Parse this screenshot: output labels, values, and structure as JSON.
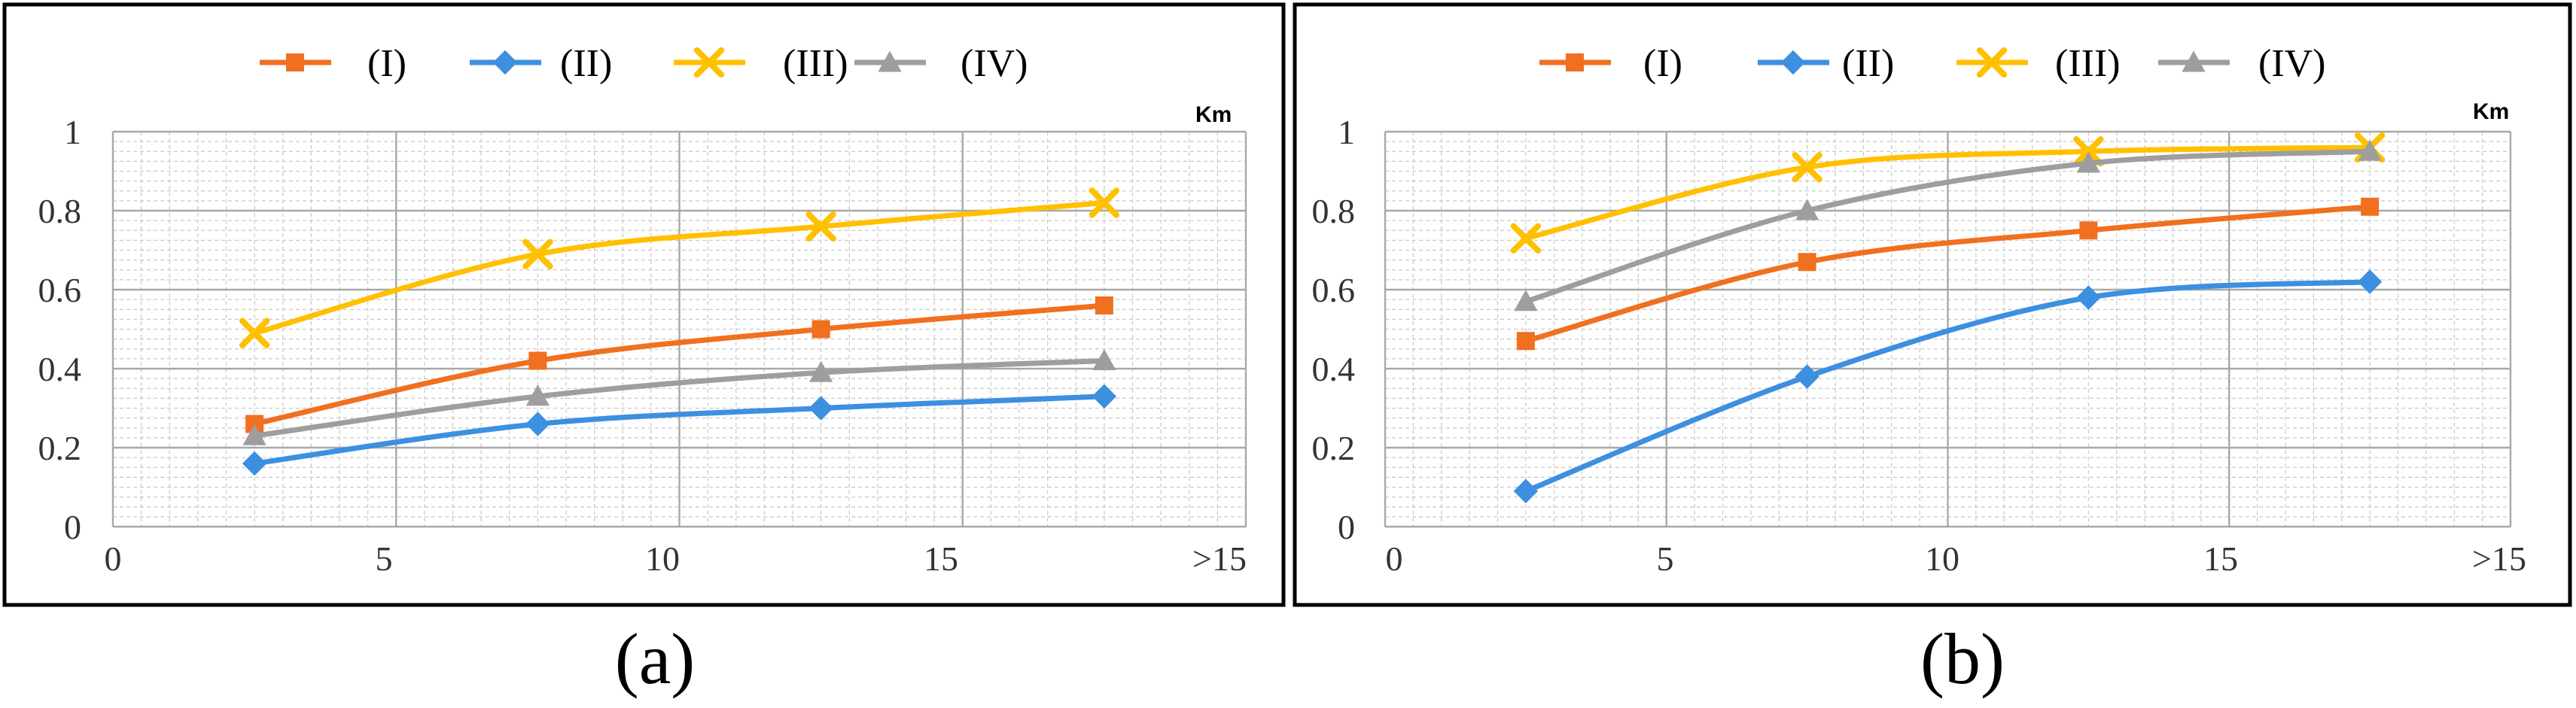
{
  "chart_data": [
    {
      "type": "line",
      "caption": "(a)",
      "unit_label": "Km",
      "x_tick_labels": [
        "0",
        "5",
        "10",
        "15",
        ">15"
      ],
      "y_tick_labels": [
        "0",
        "0.2",
        "0.4",
        "0.6",
        "0.8",
        "1"
      ],
      "xlim": [
        0,
        20
      ],
      "ylim": [
        0,
        1
      ],
      "grid": true,
      "legend": "top",
      "x": [
        2.5,
        7.5,
        12.5,
        17.5
      ],
      "series": [
        {
          "name": "(I)",
          "color": "#F07020",
          "marker": "square",
          "values": [
            0.26,
            0.42,
            0.5,
            0.56
          ]
        },
        {
          "name": "(II)",
          "color": "#3D8FE0",
          "marker": "diamond",
          "values": [
            0.16,
            0.26,
            0.3,
            0.33
          ]
        },
        {
          "name": "(III)",
          "color": "#FFC000",
          "marker": "x",
          "values": [
            0.49,
            0.69,
            0.76,
            0.82
          ]
        },
        {
          "name": "(IV)",
          "color": "#9E9E9E",
          "marker": "triangle",
          "values": [
            0.23,
            0.33,
            0.39,
            0.42
          ]
        }
      ]
    },
    {
      "type": "line",
      "caption": "(b)",
      "unit_label": "Km",
      "x_tick_labels": [
        "0",
        "5",
        "10",
        "15",
        ">15"
      ],
      "y_tick_labels": [
        "0",
        "0.2",
        "0.4",
        "0.6",
        "0.8",
        "1"
      ],
      "xlim": [
        0,
        20
      ],
      "ylim": [
        0,
        1
      ],
      "grid": true,
      "legend": "top",
      "x": [
        2.5,
        7.5,
        12.5,
        17.5
      ],
      "series": [
        {
          "name": "(I)",
          "color": "#F07020",
          "marker": "square",
          "values": [
            0.47,
            0.67,
            0.75,
            0.81
          ]
        },
        {
          "name": "(II)",
          "color": "#3D8FE0",
          "marker": "diamond",
          "values": [
            0.09,
            0.38,
            0.58,
            0.62
          ]
        },
        {
          "name": "(III)",
          "color": "#FFC000",
          "marker": "x",
          "values": [
            0.73,
            0.91,
            0.95,
            0.96
          ]
        },
        {
          "name": "(IV)",
          "color": "#9E9E9E",
          "marker": "triangle",
          "values": [
            0.57,
            0.8,
            0.92,
            0.95
          ]
        }
      ]
    }
  ]
}
